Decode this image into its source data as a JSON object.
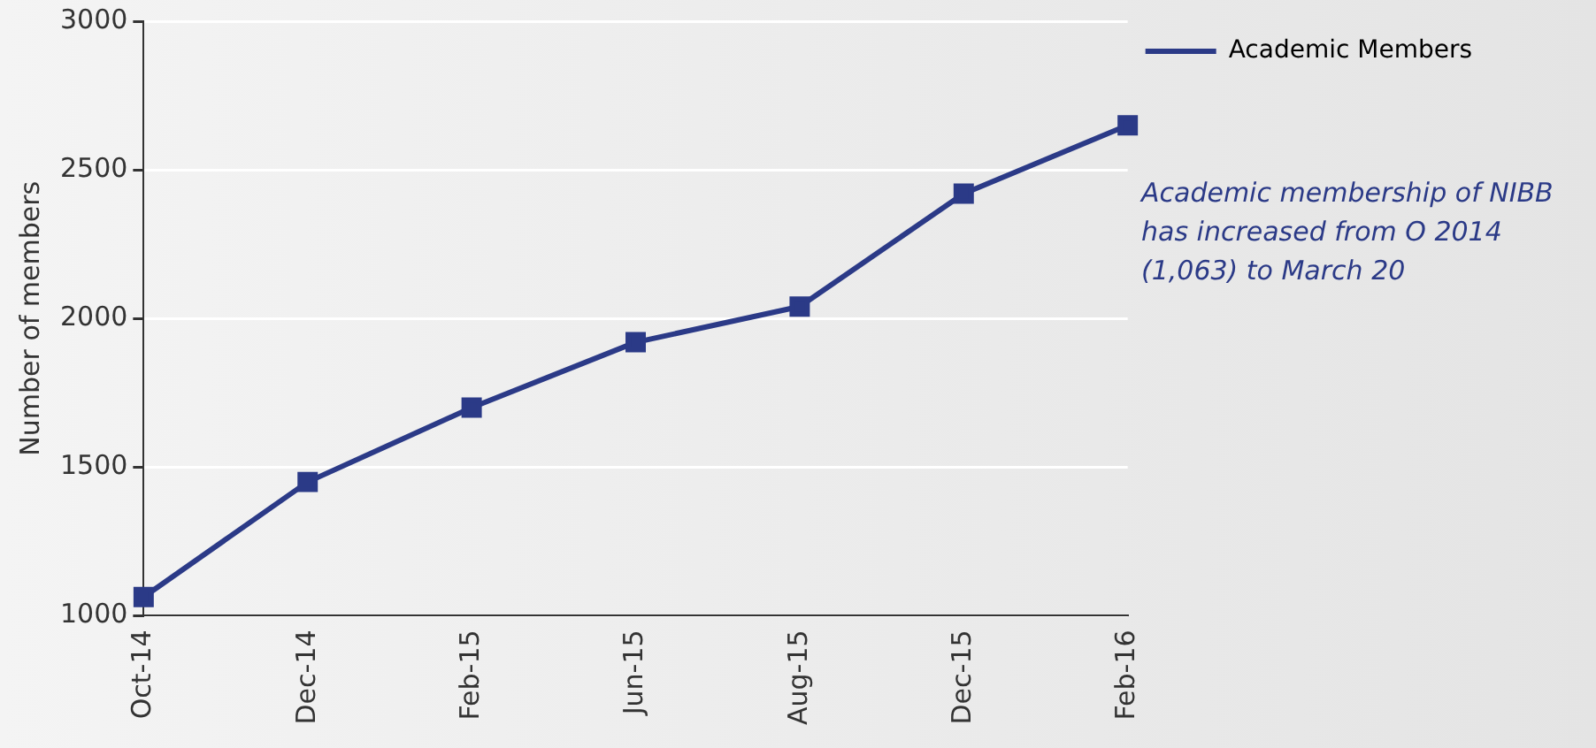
{
  "chart_data": {
    "type": "line",
    "ylabel": "Number of members",
    "categories": [
      "Oct-14",
      "Dec-14",
      "Feb-15",
      "Jun-15",
      "Aug-15",
      "Dec-15",
      "Feb-16"
    ],
    "series": [
      {
        "name": "Academic Members",
        "color": "#2b3a87",
        "values": [
          1063,
          1450,
          1700,
          1920,
          2040,
          2420,
          2650
        ]
      }
    ],
    "ylim": [
      1000,
      3000
    ],
    "yticks": [
      1000,
      1500,
      2000,
      2500,
      3000
    ],
    "grid": "y",
    "legend": "top right",
    "marker": "square",
    "line_style": "solid",
    "annotations": [
      "Academic membership of NIBB has increased from O 2014 (1,063) to March 20"
    ]
  }
}
